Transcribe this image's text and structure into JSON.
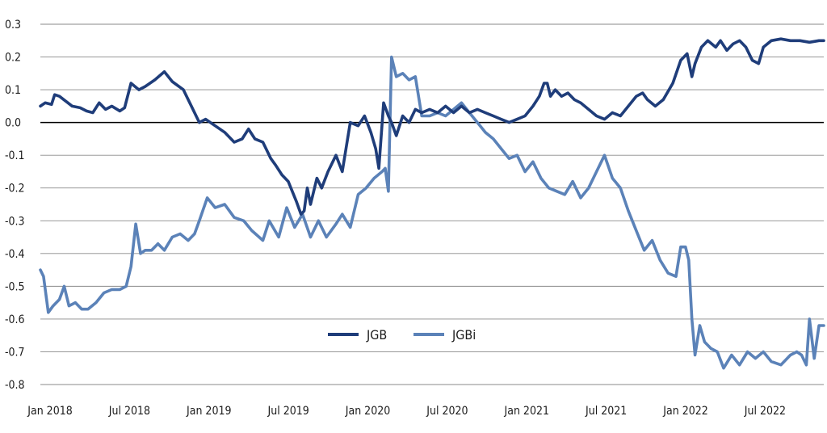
{
  "chart_data": {
    "type": "line",
    "title": "",
    "xlabel": "",
    "ylabel": "",
    "ylim": [
      -0.8,
      0.3
    ],
    "y_ticks": [
      "0.3",
      "0.2",
      "0.1",
      "0.0",
      "-0.1",
      "-0.2",
      "-0.3",
      "-0.4",
      "-0.5",
      "-0.6",
      "-0.7",
      "-0.8"
    ],
    "x_ticks": [
      "Jan 2018",
      "Jul 2018",
      "Jan 2019",
      "Jul 2019",
      "Jan 2020",
      "Jul 2020",
      "Jan 2021",
      "Jul 2021",
      "Jan 2022",
      "Jul 2022"
    ],
    "x_tick_positions": [
      2018.0,
      2018.5,
      2019.0,
      2019.5,
      2020.0,
      2020.5,
      2021.0,
      2021.5,
      2022.0,
      2022.5
    ],
    "xlim": [
      2018.0,
      2022.93
    ],
    "legend_position": "bottom-center",
    "gridlines": true,
    "zero_line": true,
    "series": [
      {
        "name": "JGB",
        "color": "#1f3d7a",
        "x": [
          2018.0,
          2018.03,
          2018.07,
          2018.09,
          2018.12,
          2018.16,
          2018.2,
          2018.25,
          2018.29,
          2018.33,
          2018.37,
          2018.41,
          2018.45,
          2018.5,
          2018.53,
          2018.57,
          2018.62,
          2018.66,
          2018.72,
          2018.78,
          2018.83,
          2018.9,
          2019.0,
          2019.04,
          2019.1,
          2019.16,
          2019.22,
          2019.27,
          2019.31,
          2019.35,
          2019.4,
          2019.45,
          2019.48,
          2019.52,
          2019.56,
          2019.61,
          2019.64,
          2019.66,
          2019.68,
          2019.7,
          2019.74,
          2019.77,
          2019.81,
          2019.86,
          2019.9,
          2019.95,
          2020.0,
          2020.04,
          2020.08,
          2020.11,
          2020.13,
          2020.16,
          2020.19,
          2020.21,
          2020.24,
          2020.28,
          2020.32,
          2020.36,
          2020.4,
          2020.45,
          2020.5,
          2020.55,
          2020.6,
          2020.65,
          2020.7,
          2020.75,
          2020.8,
          2020.85,
          2020.9,
          2020.95,
          2021.0,
          2021.05,
          2021.1,
          2021.14,
          2021.17,
          2021.19,
          2021.21,
          2021.24,
          2021.28,
          2021.32,
          2021.36,
          2021.4,
          2021.45,
          2021.5,
          2021.55,
          2021.6,
          2021.65,
          2021.7,
          2021.75,
          2021.79,
          2021.82,
          2021.87,
          2021.92,
          2021.98,
          2022.03,
          2022.07,
          2022.1,
          2022.12,
          2022.16,
          2022.2,
          2022.25,
          2022.28,
          2022.32,
          2022.36,
          2022.4,
          2022.44,
          2022.48,
          2022.52,
          2022.55,
          2022.6,
          2022.66,
          2022.72,
          2022.78,
          2022.84,
          2022.9,
          2022.93
        ],
        "values": [
          0.05,
          0.06,
          0.055,
          0.085,
          0.08,
          0.065,
          0.05,
          0.045,
          0.035,
          0.03,
          0.06,
          0.04,
          0.05,
          0.035,
          0.045,
          0.12,
          0.1,
          0.11,
          0.13,
          0.155,
          0.125,
          0.1,
          0.0,
          0.01,
          -0.01,
          -0.03,
          -0.06,
          -0.05,
          -0.02,
          -0.05,
          -0.06,
          -0.11,
          -0.13,
          -0.16,
          -0.18,
          -0.24,
          -0.28,
          -0.27,
          -0.2,
          -0.25,
          -0.17,
          -0.2,
          -0.15,
          -0.1,
          -0.15,
          0.0,
          -0.01,
          0.02,
          -0.03,
          -0.08,
          -0.14,
          0.06,
          0.02,
          0.0,
          -0.04,
          0.02,
          0.0,
          0.04,
          0.03,
          0.04,
          0.03,
          0.05,
          0.03,
          0.05,
          0.03,
          0.04,
          0.03,
          0.02,
          0.01,
          0.0,
          0.01,
          0.02,
          0.05,
          0.08,
          0.12,
          0.12,
          0.08,
          0.1,
          0.08,
          0.09,
          0.07,
          0.06,
          0.04,
          0.02,
          0.01,
          0.03,
          0.02,
          0.05,
          0.08,
          0.09,
          0.07,
          0.05,
          0.07,
          0.12,
          0.19,
          0.21,
          0.14,
          0.18,
          0.23,
          0.25,
          0.23,
          0.25,
          0.22,
          0.24,
          0.25,
          0.23,
          0.19,
          0.18,
          0.23,
          0.25,
          0.255,
          0.25,
          0.25,
          0.245,
          0.25,
          0.25
        ]
      },
      {
        "name": "JGBi",
        "color": "#5b82b8",
        "x": [
          2018.0,
          2018.02,
          2018.05,
          2018.08,
          2018.12,
          2018.15,
          2018.18,
          2018.22,
          2018.26,
          2018.3,
          2018.35,
          2018.4,
          2018.45,
          2018.5,
          2018.54,
          2018.57,
          2018.6,
          2018.63,
          2018.66,
          2018.7,
          2018.74,
          2018.78,
          2018.83,
          2018.88,
          2018.93,
          2018.97,
          2019.0,
          2019.05,
          2019.1,
          2019.16,
          2019.22,
          2019.28,
          2019.33,
          2019.4,
          2019.44,
          2019.5,
          2019.55,
          2019.6,
          2019.65,
          2019.7,
          2019.75,
          2019.8,
          2019.86,
          2019.9,
          2019.95,
          2020.0,
          2020.05,
          2020.1,
          2020.15,
          2020.17,
          2020.19,
          2020.21,
          2020.24,
          2020.28,
          2020.32,
          2020.36,
          2020.4,
          2020.45,
          2020.5,
          2020.55,
          2020.6,
          2020.65,
          2020.7,
          2020.75,
          2020.8,
          2020.85,
          2020.9,
          2020.95,
          2021.0,
          2021.05,
          2021.1,
          2021.15,
          2021.2,
          2021.25,
          2021.3,
          2021.35,
          2021.4,
          2021.45,
          2021.5,
          2021.55,
          2021.6,
          2021.65,
          2021.7,
          2021.75,
          2021.8,
          2021.85,
          2021.9,
          2021.95,
          2022.0,
          2022.03,
          2022.06,
          2022.08,
          2022.1,
          2022.12,
          2022.15,
          2022.18,
          2022.22,
          2022.26,
          2022.3,
          2022.35,
          2022.4,
          2022.45,
          2022.5,
          2022.55,
          2022.6,
          2022.66,
          2022.72,
          2022.76,
          2022.79,
          2022.82,
          2022.84,
          2022.87,
          2022.9,
          2022.93
        ],
        "values": [
          -0.45,
          -0.47,
          -0.58,
          -0.56,
          -0.54,
          -0.5,
          -0.56,
          -0.55,
          -0.57,
          -0.57,
          -0.55,
          -0.52,
          -0.51,
          -0.51,
          -0.5,
          -0.44,
          -0.31,
          -0.4,
          -0.39,
          -0.39,
          -0.37,
          -0.39,
          -0.35,
          -0.34,
          -0.36,
          -0.34,
          -0.3,
          -0.23,
          -0.26,
          -0.25,
          -0.29,
          -0.3,
          -0.33,
          -0.36,
          -0.3,
          -0.35,
          -0.26,
          -0.32,
          -0.28,
          -0.35,
          -0.3,
          -0.35,
          -0.31,
          -0.28,
          -0.32,
          -0.22,
          -0.2,
          -0.17,
          -0.15,
          -0.14,
          -0.21,
          0.2,
          0.14,
          0.15,
          0.13,
          0.14,
          0.02,
          0.02,
          0.03,
          0.02,
          0.04,
          0.06,
          0.03,
          0.0,
          -0.03,
          -0.05,
          -0.08,
          -0.11,
          -0.1,
          -0.15,
          -0.12,
          -0.17,
          -0.2,
          -0.21,
          -0.22,
          -0.18,
          -0.23,
          -0.2,
          -0.15,
          -0.1,
          -0.17,
          -0.2,
          -0.27,
          -0.33,
          -0.39,
          -0.36,
          -0.42,
          -0.46,
          -0.47,
          -0.38,
          -0.38,
          -0.42,
          -0.6,
          -0.71,
          -0.62,
          -0.67,
          -0.69,
          -0.7,
          -0.75,
          -0.71,
          -0.74,
          -0.7,
          -0.72,
          -0.7,
          -0.73,
          -0.74,
          -0.71,
          -0.7,
          -0.71,
          -0.74,
          -0.6,
          -0.72,
          -0.62,
          -0.62
        ]
      }
    ]
  }
}
